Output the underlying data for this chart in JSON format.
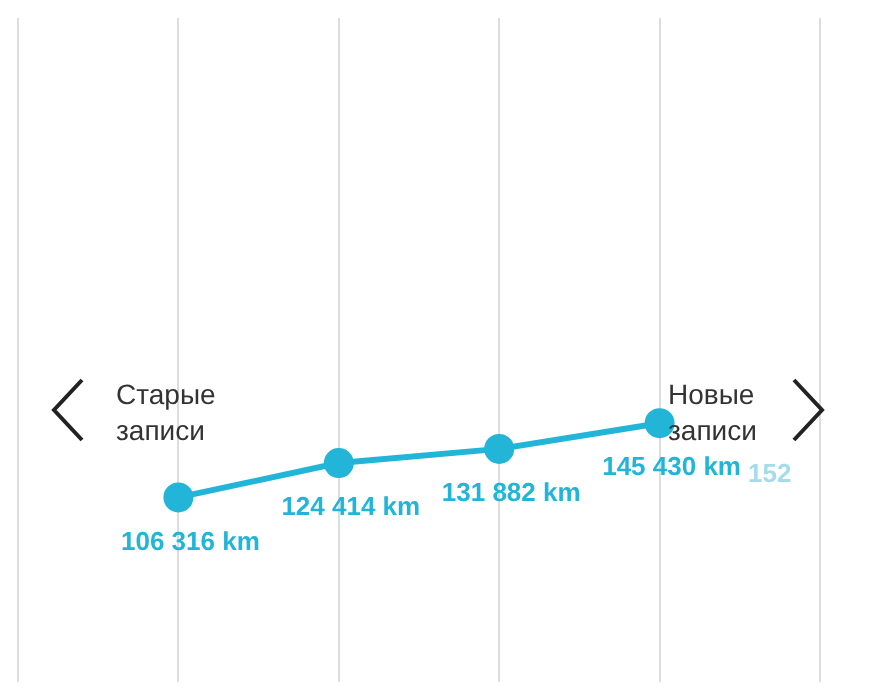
{
  "chart_data": {
    "type": "line",
    "categories": [
      null,
      null,
      null,
      null,
      null,
      null
    ],
    "series": [
      {
        "color": "#22b5d8",
        "values": [
          null,
          106316,
          124414,
          131882,
          145430,
          null
        ],
        "value_labels": [
          null,
          "106 316 km",
          "124 414 km",
          "131 882 km",
          "145 430 km",
          null
        ]
      }
    ],
    "ylim": [
      9000,
      359000
    ],
    "tick_labels": false,
    "grid": "x",
    "marker": "circle",
    "line_style": "solid",
    "annotations": [
      "Старые записи",
      "Новые записи",
      "152"
    ]
  }
}
